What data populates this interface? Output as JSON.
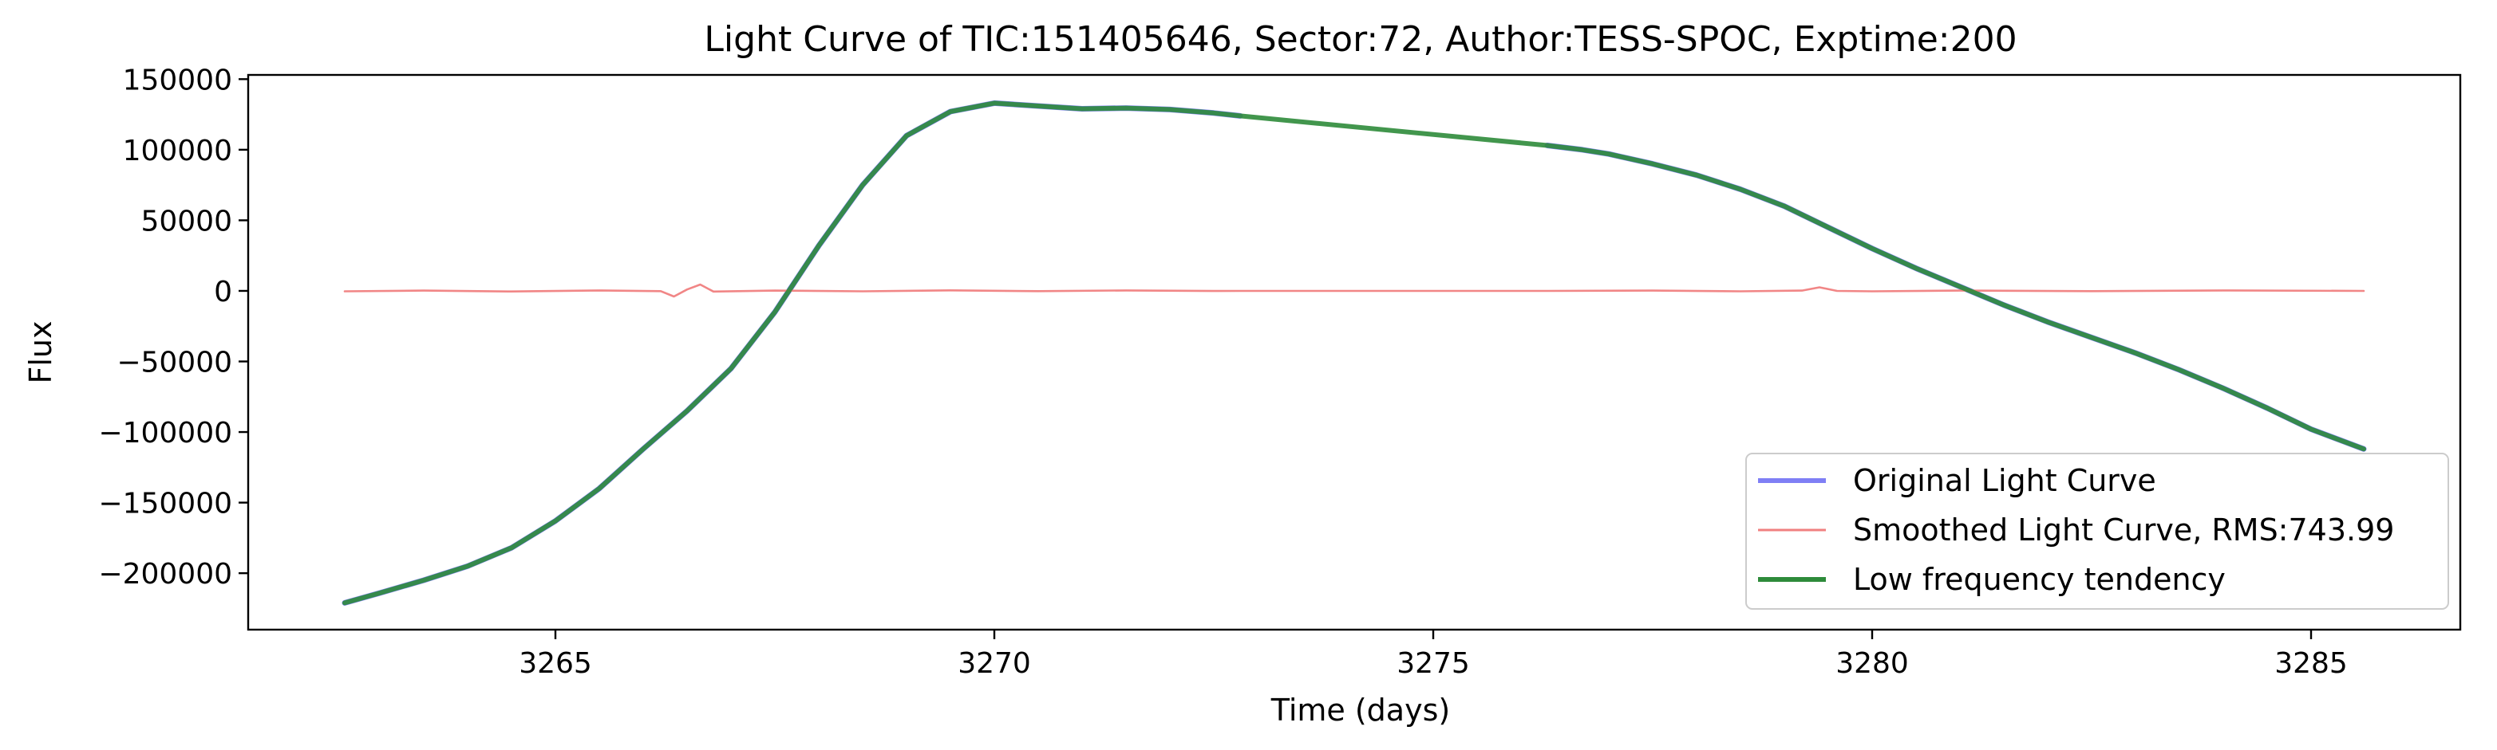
{
  "chart_data": {
    "type": "line",
    "title": "Light Curve of TIC:151405646, Sector:72, Author:TESS-SPOC, Exptime:200",
    "xlabel": "Time (days)",
    "ylabel": "Flux",
    "xlim": [
      3261.5,
      3286.7
    ],
    "ylim": [
      -240000,
      153000
    ],
    "xticks": [
      3265,
      3270,
      3275,
      3280,
      3285
    ],
    "yticks": [
      -200000,
      -150000,
      -100000,
      -50000,
      0,
      50000,
      100000,
      150000
    ],
    "xtick_labels": [
      "3265",
      "3270",
      "3275",
      "3280",
      "3285"
    ],
    "ytick_labels": [
      "−200000",
      "−150000",
      "−100000",
      "−50000",
      "0",
      "50000",
      "100000",
      "150000"
    ],
    "grid": false,
    "legend_position": "lower-right",
    "gap": [
      3272.8,
      3276.3
    ],
    "series": [
      {
        "name": "Original Light Curve",
        "color": "#7f7ff5",
        "x": [
          3262.6,
          3263.0,
          3263.5,
          3264.0,
          3264.5,
          3265.0,
          3265.5,
          3266.0,
          3266.5,
          3267.0,
          3267.5,
          3268.0,
          3268.5,
          3269.0,
          3269.5,
          3270.0,
          3270.5,
          3271.0,
          3271.5,
          3272.0,
          3272.5,
          3272.8,
          null,
          3276.3,
          3276.7,
          3277.0,
          3277.5,
          3278.0,
          3278.5,
          3279.0,
          3279.5,
          3280.0,
          3280.5,
          3281.0,
          3281.5,
          3282.0,
          3282.5,
          3283.0,
          3283.5,
          3284.0,
          3284.5,
          3285.0,
          3285.6
        ],
        "y": [
          -221000,
          -214000,
          -205000,
          -195000,
          -182000,
          -163000,
          -140000,
          -112000,
          -85000,
          -55000,
          -15000,
          32000,
          75000,
          110000,
          127000,
          133000,
          131000,
          129000,
          129500,
          128500,
          126000,
          124000,
          null,
          103000,
          100000,
          97000,
          90000,
          82000,
          72000,
          60000,
          45000,
          30000,
          16000,
          3000,
          -10000,
          -22000,
          -33000,
          -44000,
          -56000,
          -69000,
          -83000,
          -98000,
          -112000
        ]
      },
      {
        "name": "Smoothed Light Curve, RMS:743.99",
        "color": "#f08080",
        "x": [
          3262.6,
          3263.5,
          3264.5,
          3265.5,
          3266.2,
          3266.35,
          3266.5,
          3266.65,
          3266.8,
          3267.5,
          3268.5,
          3269.5,
          3270.5,
          3271.5,
          3272.5,
          3272.8,
          3274.5,
          3276.3,
          3277.5,
          3278.5,
          3279.2,
          3279.4,
          3279.6,
          3280.0,
          3281.0,
          3282.5,
          3284.0,
          3285.6
        ],
        "y": [
          -300,
          200,
          -400,
          300,
          -200,
          -4000,
          1000,
          4500,
          -500,
          200,
          -300,
          400,
          -200,
          300,
          -100,
          0,
          0,
          0,
          200,
          -300,
          200,
          2500,
          0,
          -300,
          200,
          -200,
          300,
          0
        ]
      },
      {
        "name": "Low frequency tendency",
        "color": "#2e8b3a",
        "x": [
          3262.6,
          3263.0,
          3263.5,
          3264.0,
          3264.5,
          3265.0,
          3265.5,
          3266.0,
          3266.5,
          3267.0,
          3267.5,
          3268.0,
          3268.5,
          3269.0,
          3269.5,
          3270.0,
          3270.5,
          3271.0,
          3271.5,
          3272.0,
          3272.5,
          3272.8,
          3276.3,
          3276.7,
          3277.0,
          3277.5,
          3278.0,
          3278.5,
          3279.0,
          3279.5,
          3280.0,
          3280.5,
          3281.0,
          3281.5,
          3282.0,
          3282.5,
          3283.0,
          3283.5,
          3284.0,
          3284.5,
          3285.0,
          3285.6
        ],
        "y": [
          -221000,
          -214000,
          -205000,
          -195000,
          -182000,
          -163000,
          -140000,
          -112000,
          -85000,
          -55000,
          -15000,
          32000,
          75000,
          110000,
          127000,
          133000,
          131000,
          129000,
          129500,
          128500,
          126000,
          124000,
          103000,
          100000,
          97000,
          90000,
          82000,
          72000,
          60000,
          45000,
          30000,
          16000,
          3000,
          -10000,
          -22000,
          -33000,
          -44000,
          -56000,
          -69000,
          -83000,
          -98000,
          -112000
        ]
      }
    ]
  }
}
